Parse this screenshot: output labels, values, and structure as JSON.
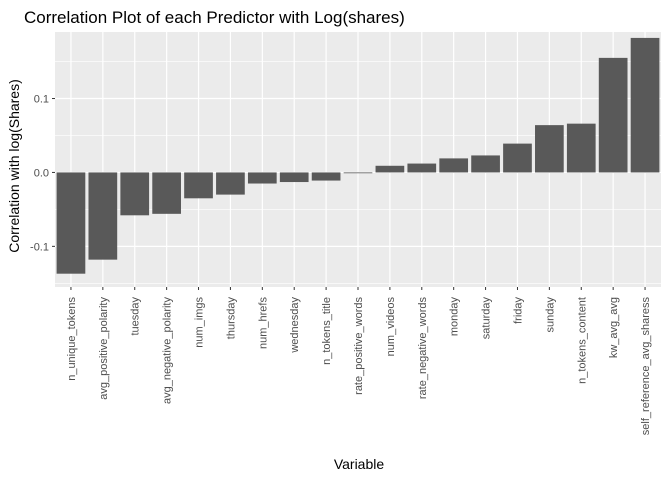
{
  "chart_data": {
    "type": "bar",
    "title": "Correlation Plot of each Predictor with Log(shares)",
    "xlabel": "Variable",
    "ylabel": "Correlation with log(Shares)",
    "ylim": [
      -0.155,
      0.19
    ],
    "yticks": [
      -0.1,
      0.0,
      0.1
    ],
    "ytick_labels": [
      "-0.1",
      "0.0",
      "0.1"
    ],
    "grid": true,
    "panel_background": "#ebebeb",
    "grid_color": "#ffffff",
    "bar_color": "#595959",
    "categories": [
      "n_unique_tokens",
      "avg_positive_polarity",
      "tuesday",
      "avg_negative_polarity",
      "num_imgs",
      "thursday",
      "num_hrefs",
      "wednesday",
      "n_tokens_title",
      "rate_positive_words",
      "num_videos",
      "rate_negative_words",
      "monday",
      "saturday",
      "friday",
      "sunday",
      "n_tokens_content",
      "kw_avg_avg",
      "self_reference_avg_sharess"
    ],
    "values": [
      -0.137,
      -0.118,
      -0.058,
      -0.056,
      -0.035,
      -0.03,
      -0.015,
      -0.013,
      -0.011,
      -0.001,
      0.009,
      0.012,
      0.019,
      0.023,
      0.039,
      0.064,
      0.066,
      0.155,
      0.182
    ]
  }
}
